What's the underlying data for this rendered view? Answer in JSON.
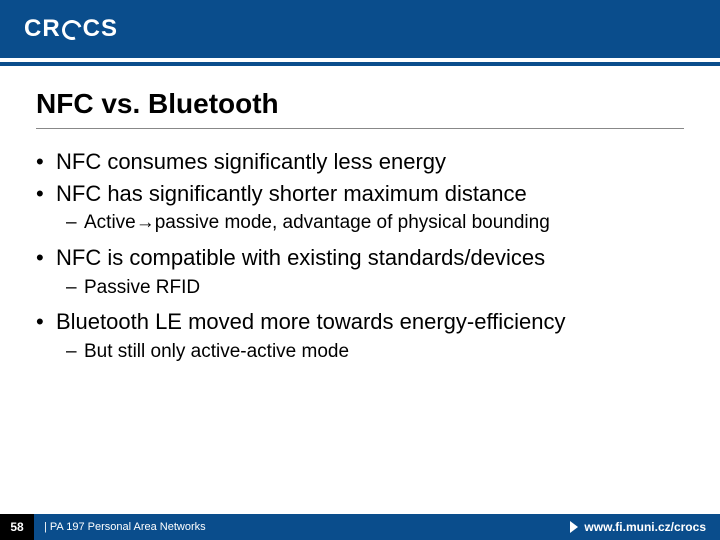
{
  "header": {
    "logo_left": "CR",
    "logo_right": "CS",
    "brand_color": "#0a4d8c"
  },
  "slide": {
    "title": "NFC vs. Bluetooth",
    "bullets": [
      {
        "level": 1,
        "text": "NFC consumes significantly less energy"
      },
      {
        "level": 1,
        "text": "NFC has significantly shorter maximum distance"
      },
      {
        "level": 2,
        "text": "Active→passive mode, advantage of physical bounding"
      },
      {
        "level": 1,
        "text": "NFC is compatible with existing standards/devices"
      },
      {
        "level": 2,
        "text": "Passive RFID"
      },
      {
        "level": 1,
        "text": "Bluetooth LE moved more towards energy-efficiency"
      },
      {
        "level": 2,
        "text": "But still only active-active mode"
      }
    ]
  },
  "footer": {
    "page_number": "58",
    "course_text": "| PA 197 Personal Area Networks",
    "url": "www.fi.muni.cz/crocs"
  },
  "styling": {
    "title_fontsize": 28,
    "bullet_l1_fontsize": 22,
    "bullet_l2_fontsize": 19,
    "footer_fontsize": 11,
    "text_color": "#000000",
    "background_color": "#ffffff",
    "header_bg": "#0a4d8c",
    "footer_bg": "#0a4d8c",
    "pagenum_bg": "#000000"
  }
}
